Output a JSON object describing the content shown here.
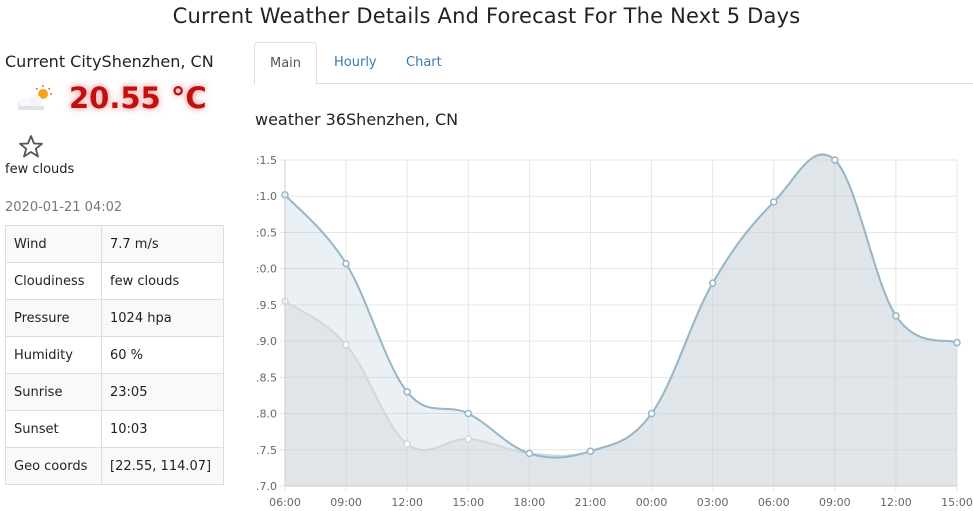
{
  "page": {
    "title": "Current Weather Details And Forecast For The Next 5 Days"
  },
  "current": {
    "city_line": "Current CityShenzhen, CN",
    "weather_icon": "few-clouds-day-icon",
    "temperature": "20.55 °C",
    "favorite_icon": "star-outline-icon",
    "description": "few clouds",
    "datetime": "2020-01-21 04:02",
    "details": [
      {
        "key": "Wind",
        "value": "7.7 m/s"
      },
      {
        "key": "Cloudiness",
        "value": "few clouds"
      },
      {
        "key": "Pressure",
        "value": "1024 hpa"
      },
      {
        "key": "Humidity",
        "value": "60 %"
      },
      {
        "key": "Sunrise",
        "value": "23:05"
      },
      {
        "key": "Sunset",
        "value": "10:03"
      },
      {
        "key": "Geo coords",
        "value": "[22.55, 114.07]"
      }
    ]
  },
  "tabs": [
    {
      "label": "Main",
      "active": true
    },
    {
      "label": "Hourly",
      "active": false
    },
    {
      "label": "Chart",
      "active": false
    }
  ],
  "chart_title": "weather 36Shenzhen, CN",
  "colors": {
    "temperature_red": "#c21010",
    "link_blue": "#337ab7",
    "series_1_line": "#97b6c9",
    "series_2_line": "#d2d8da"
  },
  "chart_data": {
    "type": "area",
    "categories": [
      "06:00",
      "09:00",
      "12:00",
      "15:00",
      "18:00",
      "21:00",
      "00:00",
      "03:00",
      "06:00",
      "09:00",
      "12:00",
      "15:00"
    ],
    "y_tick_labels": [
      ":1.5",
      ":1.0",
      ":0.5",
      ":0.0",
      ".9.5",
      ".9.0",
      ".8.5",
      ".8.0",
      ".7.5",
      ".7.0"
    ],
    "ylim": [
      17.0,
      21.5
    ],
    "grid": true,
    "series": [
      {
        "values": [
          21.02,
          20.07,
          18.3,
          18.0,
          17.45,
          17.48,
          18.0,
          19.8,
          20.92,
          21.5,
          19.35,
          18.98
        ]
      },
      {
        "values": [
          19.55,
          18.95,
          17.58,
          17.65,
          17.45,
          17.48,
          18.0,
          19.8,
          20.92,
          21.5,
          19.35,
          18.98
        ]
      }
    ]
  }
}
